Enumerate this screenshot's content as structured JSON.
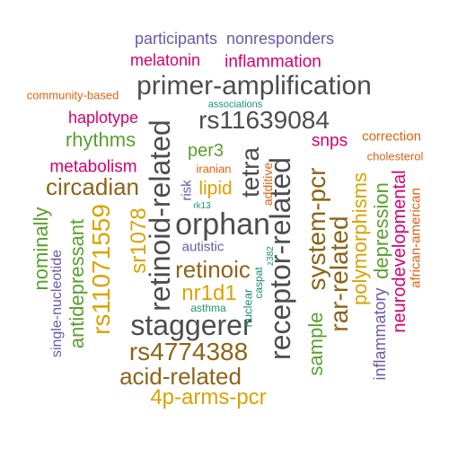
{
  "colors": {
    "gray": "#4d4d4d",
    "brown": "#8c6418",
    "gold": "#d9a300",
    "green": "#5aa02c",
    "magenta": "#d4006e",
    "purple": "#6a5aa8",
    "orange": "#e0620f",
    "teal": "#1b9473"
  },
  "words": [
    {
      "text": "participants",
      "color": "purple"
    },
    {
      "text": "nonresponders",
      "color": "purple"
    },
    {
      "text": "melatonin",
      "color": "magenta"
    },
    {
      "text": "inflammation",
      "color": "magenta"
    },
    {
      "text": "primer-amplification",
      "color": "gray"
    },
    {
      "text": "community-based",
      "color": "orange"
    },
    {
      "text": "associations",
      "color": "teal"
    },
    {
      "text": "rs11639084",
      "color": "gray"
    },
    {
      "text": "haplotype",
      "color": "magenta"
    },
    {
      "text": "rhythms",
      "color": "green"
    },
    {
      "text": "snps",
      "color": "magenta"
    },
    {
      "text": "correction",
      "color": "orange"
    },
    {
      "text": "per3",
      "color": "green"
    },
    {
      "text": "cholesterol",
      "color": "orange"
    },
    {
      "text": "metabolism",
      "color": "magenta"
    },
    {
      "text": "iranian",
      "color": "orange"
    },
    {
      "text": "circadian",
      "color": "brown"
    },
    {
      "text": "lipid",
      "color": "gold"
    },
    {
      "text": "rk13",
      "color": "teal"
    },
    {
      "text": "orphan",
      "color": "gray"
    },
    {
      "text": "retinoid-related",
      "color": "gray"
    },
    {
      "text": "tetra",
      "color": "gray"
    },
    {
      "text": "risk",
      "color": "purple"
    },
    {
      "text": "additive",
      "color": "orange"
    },
    {
      "text": "receptor-related",
      "color": "gray"
    },
    {
      "text": "system-pcr",
      "color": "brown"
    },
    {
      "text": "polymorphisms",
      "color": "gold"
    },
    {
      "text": "depression",
      "color": "green"
    },
    {
      "text": "neurodevelopmental",
      "color": "magenta"
    },
    {
      "text": "african-american",
      "color": "orange"
    },
    {
      "text": "rs11071559",
      "color": "gold"
    },
    {
      "text": "sr1078",
      "color": "gold"
    },
    {
      "text": "nominally",
      "color": "green"
    },
    {
      "text": "autistic",
      "color": "purple"
    },
    {
      "text": "retinoic",
      "color": "brown"
    },
    {
      "text": "rar-related",
      "color": "brown"
    },
    {
      "text": "nr1d1",
      "color": "gold"
    },
    {
      "text": "z382",
      "color": "teal"
    },
    {
      "text": "caspat",
      "color": "teal"
    },
    {
      "text": "nuclear",
      "color": "teal"
    },
    {
      "text": "asthma",
      "color": "teal"
    },
    {
      "text": "sample",
      "color": "green"
    },
    {
      "text": "inflammatory",
      "color": "purple"
    },
    {
      "text": "single-nucleotide",
      "color": "purple"
    },
    {
      "text": "antidepressant",
      "color": "green"
    },
    {
      "text": "staggerer",
      "color": "gray"
    },
    {
      "text": "rs4774388",
      "color": "brown"
    },
    {
      "text": "acid-related",
      "color": "brown"
    },
    {
      "text": "4p-arms-pcr",
      "color": "gold"
    }
  ]
}
